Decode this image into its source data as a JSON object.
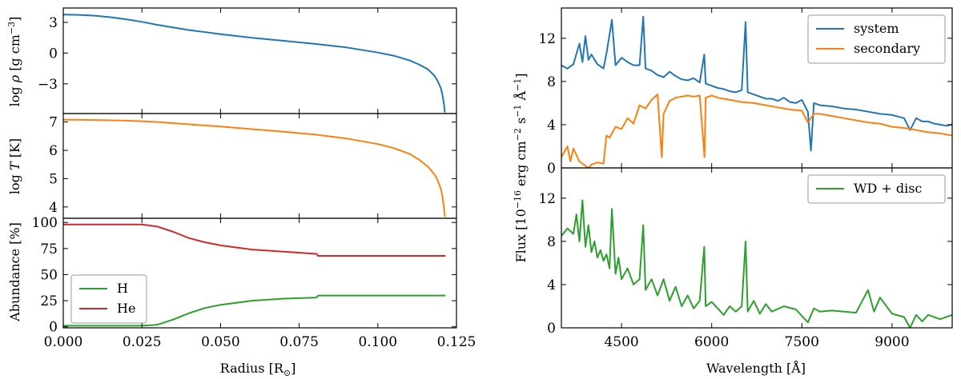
{
  "colors": {
    "blue": "#1f77b4",
    "orange": "#ff7f0e",
    "green": "#2ca02c",
    "red": "#d62728"
  },
  "chart_data": [
    {
      "id": "density",
      "type": "line",
      "ylabel": "log ρ [g cm−3]",
      "ylabel_main": "log ",
      "ylabel_sym": "ρ",
      "ylabel_unit": " [g cm",
      "ylabel_exp": "−3",
      "ylabel_end": "]",
      "xlim": [
        0,
        0.125
      ],
      "ylim": [
        -5.9,
        4.4
      ],
      "yticks": [
        3,
        0,
        -3
      ],
      "ytick_labels": [
        "3",
        "0",
        "−3"
      ],
      "series": [
        {
          "name": "log rho",
          "color": "#1f77b4",
          "x": [
            0,
            0.005,
            0.01,
            0.015,
            0.02,
            0.025,
            0.03,
            0.04,
            0.05,
            0.06,
            0.07,
            0.08,
            0.09,
            0.1,
            0.105,
            0.11,
            0.113,
            0.116,
            0.118,
            0.119,
            0.12,
            0.1205,
            0.121,
            0.1213
          ],
          "y": [
            3.75,
            3.73,
            3.65,
            3.5,
            3.3,
            3.05,
            2.75,
            2.25,
            1.85,
            1.5,
            1.2,
            0.9,
            0.55,
            0.05,
            -0.25,
            -0.7,
            -1.1,
            -1.6,
            -2.2,
            -2.7,
            -3.4,
            -4.0,
            -4.9,
            -5.8
          ]
        }
      ]
    },
    {
      "id": "temperature",
      "type": "line",
      "ylabel_main": "log ",
      "ylabel_sym": "T",
      "ylabel_unit": " [K]",
      "xlim": [
        0,
        0.125
      ],
      "ylim": [
        3.6,
        7.3
      ],
      "yticks": [
        7,
        6,
        5,
        4
      ],
      "ytick_labels": [
        "7",
        "6",
        "5",
        "4"
      ],
      "series": [
        {
          "name": "log T",
          "color": "#ff7f0e",
          "x": [
            0,
            0.005,
            0.01,
            0.015,
            0.02,
            0.025,
            0.03,
            0.04,
            0.05,
            0.06,
            0.07,
            0.08,
            0.09,
            0.1,
            0.105,
            0.11,
            0.113,
            0.116,
            0.118,
            0.119,
            0.12,
            0.1205,
            0.121,
            0.1213
          ],
          "y": [
            7.08,
            7.08,
            7.07,
            7.06,
            7.05,
            7.03,
            7.0,
            6.92,
            6.84,
            6.75,
            6.66,
            6.56,
            6.42,
            6.22,
            6.08,
            5.88,
            5.68,
            5.42,
            5.15,
            4.95,
            4.65,
            4.4,
            4.0,
            3.65
          ]
        }
      ]
    },
    {
      "id": "abundance",
      "type": "line",
      "ylabel_main": "Abundance [%]",
      "xlabel_main": "Radius [R",
      "xlabel_sub": "⊙",
      "xlabel_end": "]",
      "xlim": [
        0,
        0.125
      ],
      "ylim": [
        -1,
        104
      ],
      "yticks": [
        100,
        75,
        50,
        25,
        0
      ],
      "ytick_labels": [
        "100",
        "75",
        "50",
        "25",
        "0"
      ],
      "xticks": [
        0,
        0.025,
        0.05,
        0.075,
        0.1,
        0.125
      ],
      "xtick_labels": [
        "0.000",
        "0.025",
        "0.050",
        "0.075",
        "0.100",
        "0.125"
      ],
      "legend": [
        "H",
        "He"
      ],
      "legend_position": "lower-left",
      "series": [
        {
          "name": "H",
          "color": "#2ca02c",
          "x": [
            0,
            0.025,
            0.03,
            0.035,
            0.04,
            0.045,
            0.05,
            0.06,
            0.07,
            0.08,
            0.0805,
            0.081,
            0.09,
            0.1,
            0.11,
            0.1215
          ],
          "y": [
            1,
            1,
            2,
            7,
            13,
            18,
            21,
            25,
            27,
            28,
            28,
            30,
            30,
            30,
            30,
            30
          ]
        },
        {
          "name": "He",
          "color": "#d62728",
          "x": [
            0,
            0.025,
            0.03,
            0.035,
            0.04,
            0.045,
            0.05,
            0.06,
            0.07,
            0.08,
            0.0805,
            0.081,
            0.09,
            0.1,
            0.11,
            0.1215
          ],
          "y": [
            98,
            98,
            96,
            91,
            85,
            81,
            78,
            74,
            72,
            70,
            70,
            68,
            68,
            68,
            68,
            68
          ]
        }
      ]
    },
    {
      "id": "spectrum-top",
      "type": "line",
      "xlim": [
        3500,
        10000
      ],
      "ylim": [
        0,
        14.8
      ],
      "yticks": [
        0,
        4,
        8,
        12
      ],
      "ytick_labels": [
        "0",
        "4",
        "8",
        "12"
      ],
      "legend": [
        "system",
        "secondary"
      ],
      "legend_position": "upper-right",
      "series": [
        {
          "name": "system",
          "color": "#1f77b4",
          "x": [
            3500,
            3600,
            3700,
            3800,
            3850,
            3900,
            3950,
            4000,
            4100,
            4200,
            4250,
            4340,
            4400,
            4500,
            4600,
            4700,
            4800,
            4861,
            4900,
            5000,
            5100,
            5200,
            5300,
            5400,
            5500,
            5600,
            5700,
            5800,
            5876,
            5900,
            6000,
            6100,
            6200,
            6300,
            6400,
            6500,
            6563,
            6600,
            6700,
            6800,
            6900,
            7000,
            7100,
            7200,
            7300,
            7400,
            7500,
            7600,
            7650,
            7700,
            7800,
            8000,
            8200,
            8400,
            8600,
            8800,
            9000,
            9200,
            9300,
            9400,
            9500,
            9600,
            9700,
            9800,
            9900,
            10000
          ],
          "y": [
            9.5,
            9.2,
            9.6,
            11.5,
            9.8,
            12.2,
            10.0,
            10.5,
            9.6,
            9.2,
            10.6,
            13.7,
            9.5,
            10.2,
            9.8,
            9.5,
            9.5,
            14.0,
            9.2,
            9.0,
            8.6,
            8.4,
            8.9,
            8.5,
            8.2,
            8.1,
            8.3,
            7.9,
            10.5,
            7.8,
            7.6,
            7.4,
            7.3,
            7.1,
            7.0,
            7.2,
            13.5,
            7.0,
            6.8,
            6.6,
            6.4,
            6.4,
            6.2,
            6.5,
            6.1,
            6.0,
            6.3,
            5.2,
            1.6,
            6.0,
            5.8,
            5.7,
            5.5,
            5.4,
            5.2,
            5.0,
            4.9,
            4.6,
            3.5,
            4.6,
            4.3,
            4.3,
            4.1,
            4.0,
            3.9,
            4.0
          ]
        },
        {
          "name": "secondary",
          "color": "#ff7f0e",
          "x": [
            3500,
            3600,
            3650,
            3700,
            3800,
            3900,
            3950,
            4000,
            4100,
            4200,
            4250,
            4300,
            4400,
            4500,
            4600,
            4700,
            4800,
            4900,
            5000,
            5100,
            5170,
            5200,
            5300,
            5400,
            5500,
            5600,
            5700,
            5800,
            5880,
            5900,
            6000,
            6100,
            6200,
            6300,
            6500,
            6700,
            6900,
            7100,
            7300,
            7500,
            7600,
            7700,
            7800,
            8000,
            8200,
            8400,
            8600,
            8800,
            9000,
            9200,
            9400,
            9500,
            9600,
            9800,
            10000
          ],
          "y": [
            1.0,
            2.0,
            0.6,
            1.8,
            0.6,
            0.2,
            0.0,
            0.3,
            0.5,
            0.4,
            3.0,
            2.8,
            3.8,
            3.6,
            4.6,
            4.1,
            5.8,
            5.5,
            6.3,
            6.8,
            1.0,
            5.0,
            6.2,
            6.5,
            6.6,
            6.7,
            6.6,
            6.7,
            1.0,
            6.5,
            6.7,
            6.5,
            6.4,
            6.3,
            6.1,
            6.0,
            5.8,
            5.6,
            5.4,
            5.3,
            4.2,
            5.0,
            5.0,
            4.8,
            4.6,
            4.4,
            4.2,
            4.1,
            3.8,
            3.7,
            3.5,
            3.4,
            3.3,
            3.2,
            3.0
          ]
        }
      ]
    },
    {
      "id": "spectrum-bottom",
      "type": "line",
      "ylabel_main": "Flux [10",
      "ylabel_exp1": "−16",
      "ylabel_mid": " erg cm",
      "ylabel_exp2": "−2",
      "ylabel_mid2": " s",
      "ylabel_exp3": "−1",
      "ylabel_mid3": " Å",
      "ylabel_exp4": "−1",
      "ylabel_end": "]",
      "xlabel": "Wavelength [Å]",
      "xlim": [
        3500,
        10000
      ],
      "ylim": [
        0,
        14.8
      ],
      "yticks": [
        0,
        4,
        8,
        12
      ],
      "ytick_labels": [
        "0",
        "4",
        "8",
        "12"
      ],
      "xticks": [
        4500,
        6000,
        7500,
        9000
      ],
      "xtick_labels": [
        "4500",
        "6000",
        "7500",
        "9000"
      ],
      "legend": [
        "WD + disc"
      ],
      "legend_position": "upper-right",
      "series": [
        {
          "name": "WD + disc",
          "color": "#2ca02c",
          "x": [
            3500,
            3600,
            3700,
            3750,
            3800,
            3850,
            3900,
            3950,
            4000,
            4050,
            4100,
            4150,
            4200,
            4250,
            4300,
            4340,
            4400,
            4450,
            4500,
            4600,
            4700,
            4800,
            4861,
            4900,
            5000,
            5100,
            5200,
            5300,
            5400,
            5500,
            5600,
            5700,
            5800,
            5876,
            5900,
            6000,
            6100,
            6200,
            6300,
            6400,
            6500,
            6563,
            6600,
            6700,
            6800,
            6900,
            7000,
            7200,
            7400,
            7600,
            7700,
            7800,
            8000,
            8200,
            8400,
            8600,
            8700,
            8800,
            9000,
            9200,
            9300,
            9400,
            9500,
            9600,
            9800,
            10000
          ],
          "y": [
            8.5,
            9.2,
            8.7,
            10.5,
            8.0,
            11.8,
            7.5,
            9.5,
            7.0,
            8.0,
            6.5,
            7.2,
            6.2,
            6.8,
            5.5,
            11.0,
            5.0,
            6.5,
            4.5,
            5.5,
            4.0,
            4.5,
            9.5,
            3.5,
            4.5,
            3.0,
            4.5,
            2.5,
            3.8,
            2.0,
            3.0,
            1.8,
            2.5,
            7.5,
            2.0,
            2.4,
            1.8,
            1.2,
            2.0,
            1.5,
            2.0,
            8.0,
            1.5,
            2.5,
            1.3,
            2.2,
            1.5,
            2.0,
            1.7,
            0.5,
            1.8,
            1.5,
            1.6,
            1.5,
            1.4,
            3.5,
            1.5,
            2.8,
            1.3,
            1.0,
            0.0,
            1.2,
            0.6,
            1.2,
            0.8,
            1.2
          ]
        }
      ]
    }
  ]
}
